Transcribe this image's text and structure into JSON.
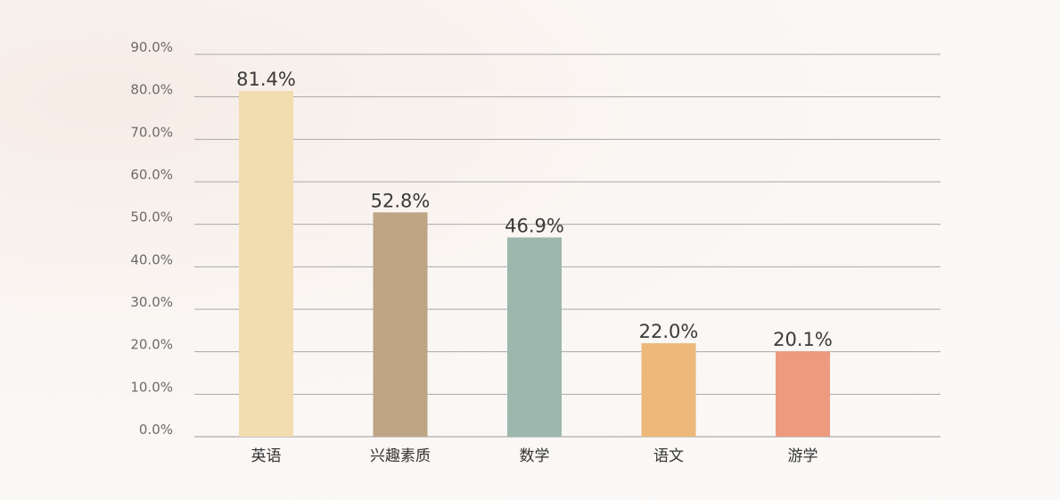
{
  "chart_data": {
    "type": "bar",
    "categories": [
      "英语",
      "兴趣素质",
      "数学",
      "语文",
      "游学"
    ],
    "values": [
      81.4,
      52.8,
      46.9,
      22.0,
      20.1
    ],
    "data_labels": [
      "81.4%",
      "52.8%",
      "46.9%",
      "22.0%",
      "20.1%"
    ],
    "colors": [
      "#F2DDB1",
      "#BDA584",
      "#9EB7AE",
      "#ECB97A",
      "#EC9B7F"
    ],
    "y_ticks": [
      "0.0%",
      "10.0%",
      "20.0%",
      "30.0%",
      "40.0%",
      "50.0%",
      "60.0%",
      "70.0%",
      "80.0%",
      "90.0%"
    ],
    "ylim": [
      0,
      90
    ],
    "grid": true,
    "title": "",
    "xlabel": "",
    "ylabel": ""
  }
}
